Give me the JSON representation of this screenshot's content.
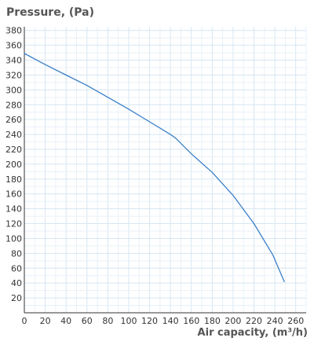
{
  "chart_data": {
    "type": "line",
    "ylabel": "Pressure, (Pa)",
    "xlabel": "Air capacity, (m³/h)",
    "xlim": [
      0,
      270
    ],
    "ylim": [
      0,
      385
    ],
    "xticks": [
      0,
      20,
      40,
      60,
      80,
      100,
      120,
      140,
      160,
      180,
      200,
      220,
      240,
      260
    ],
    "yticks": [
      20,
      40,
      60,
      80,
      100,
      120,
      140,
      160,
      180,
      200,
      220,
      240,
      260,
      280,
      300,
      320,
      340,
      360,
      380
    ],
    "x_minor_step": 10,
    "y_minor_step": 10,
    "grid": true,
    "series": [
      {
        "color": "#3a7fc8",
        "x": [
          0,
          20,
          40,
          60,
          80,
          100,
          120,
          140,
          145,
          160,
          180,
          200,
          220,
          238,
          249
        ],
        "y": [
          349,
          334,
          320,
          306,
          290,
          274,
          257,
          240,
          235,
          214,
          189,
          158,
          120,
          78,
          42
        ]
      }
    ],
    "colors": {
      "axis": "#333333",
      "grid_major": "#d6e6f2",
      "grid_minor": "#e8f1f8",
      "tick_text": "#333333"
    }
  }
}
